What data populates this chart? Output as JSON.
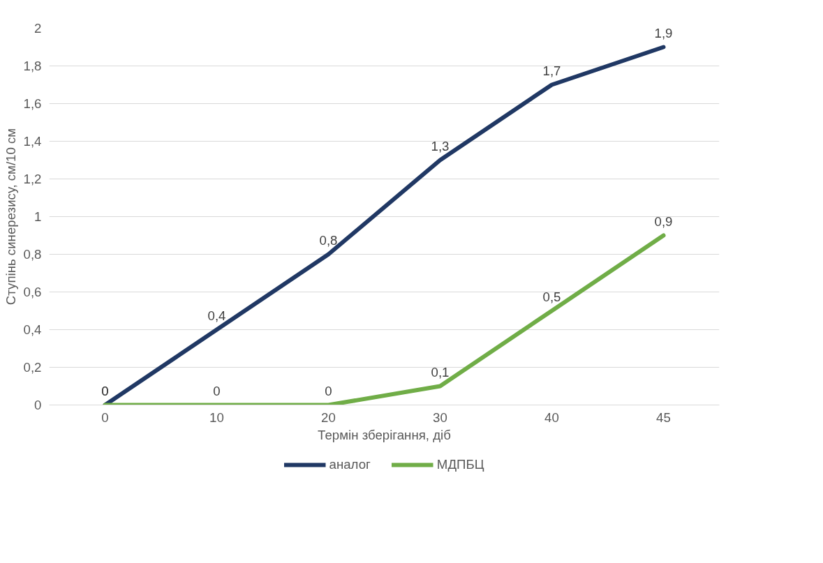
{
  "chart_data": {
    "type": "line",
    "xlabel": "Термін зберігання, діб",
    "ylabel": "Ступінь синерезису, см/10 см",
    "categories": [
      "0",
      "10",
      "20",
      "30",
      "40",
      "45"
    ],
    "series": [
      {
        "name": "аналог",
        "color": "#203864",
        "values": [
          0,
          0.4,
          0.8,
          1.3,
          1.7,
          1.9
        ],
        "value_labels": [
          "0",
          "0,4",
          "0,8",
          "1,3",
          "1,7",
          "1,9"
        ]
      },
      {
        "name": "МДПБЦ",
        "color": "#70ad47",
        "values": [
          0,
          0,
          0,
          0.1,
          0.5,
          0.9
        ],
        "value_labels": [
          "0",
          "0",
          "0",
          "0,1",
          "0,5",
          "0,9"
        ]
      }
    ],
    "ylim": [
      0,
      2
    ],
    "yticks": [
      0,
      {
        "value": 0.2,
        "label": "0,2"
      },
      {
        "value": 0.4,
        "label": "0,4"
      },
      {
        "value": 0.6,
        "label": "0,6"
      },
      {
        "value": 0.8,
        "label": "0,8"
      },
      1,
      {
        "value": 1.2,
        "label": "1,2"
      },
      {
        "value": 1.4,
        "label": "1,4"
      },
      {
        "value": 1.6,
        "label": "1,6"
      },
      {
        "value": 1.8,
        "label": "1,8"
      },
      2
    ],
    "grid": "y",
    "legend": "bottom",
    "marker": "none",
    "line_style": "solid"
  }
}
